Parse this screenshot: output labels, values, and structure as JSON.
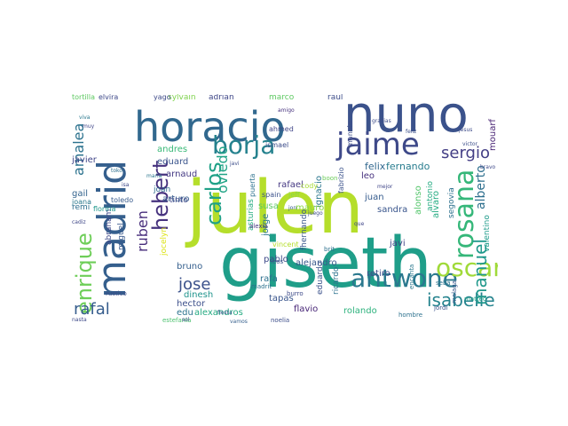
{
  "wordcloud": {
    "words": [
      {
        "text": "julen",
        "color": "#b5de2b"
      },
      {
        "text": "giseth",
        "color": "#1f9e89"
      },
      {
        "text": "nuno",
        "color": "#3b528b"
      },
      {
        "text": "horacio",
        "color": "#31688e"
      },
      {
        "text": "madrid",
        "color": "#355f8d"
      },
      {
        "text": "jaime",
        "color": "#3e4989"
      },
      {
        "text": "rosana",
        "color": "#35b779"
      },
      {
        "text": "borja",
        "color": "#26828e"
      },
      {
        "text": "antwone",
        "color": "#2a788e"
      },
      {
        "text": "oscar",
        "color": "#a0da39"
      },
      {
        "text": "enrique",
        "color": "#6ece58"
      },
      {
        "text": "hebert",
        "color": "#46327e"
      },
      {
        "text": "carlos",
        "color": "#1fa187"
      },
      {
        "text": "isabelle",
        "color": "#25838e"
      },
      {
        "text": "manuel",
        "color": "#1f988b"
      },
      {
        "text": "sergio",
        "color": "#433e85"
      },
      {
        "text": "rafal",
        "color": "#365d8d"
      },
      {
        "text": "jose",
        "color": "#3b518b"
      },
      {
        "text": "amalea",
        "color": "#2c728e"
      },
      {
        "text": "ruben",
        "color": "#472d7b"
      },
      {
        "text": "oviedo",
        "color": "#20a486"
      },
      {
        "text": "alberto",
        "color": "#2e6f8e"
      },
      {
        "text": "felix",
        "color": "#31678e"
      },
      {
        "text": "fernando",
        "color": "#287c8e"
      },
      {
        "text": "eduard",
        "color": "#3a548c"
      },
      {
        "text": "javier",
        "color": "#404588"
      },
      {
        "text": "arnaud",
        "color": "#443983"
      },
      {
        "text": "andres",
        "color": "#38b977"
      },
      {
        "text": "arturo",
        "color": "#365c8d"
      },
      {
        "text": "rafael",
        "color": "#453882"
      },
      {
        "text": "ignacio",
        "color": "#2a768e"
      },
      {
        "text": "alejandro",
        "color": "#38588c"
      },
      {
        "text": "alvaro",
        "color": "#25ac82"
      },
      {
        "text": "alonso",
        "color": "#52c569"
      },
      {
        "text": "sandra",
        "color": "#39558c"
      },
      {
        "text": "juan",
        "color": "#365c8d"
      },
      {
        "text": "susa",
        "color": "#5ec962"
      },
      {
        "text": "mauro",
        "color": "#8bd646"
      },
      {
        "text": "leo",
        "color": "#46317e"
      },
      {
        "text": "antonio",
        "color": "#25ab82"
      },
      {
        "text": "segovia",
        "color": "#2d718e"
      },
      {
        "text": "valentino",
        "color": "#1e9b8a"
      },
      {
        "text": "mouarf",
        "color": "#482374"
      },
      {
        "text": "jocelyn",
        "color": "#dde318"
      },
      {
        "text": "abraham",
        "color": "#3f4889"
      },
      {
        "text": "miguel",
        "color": "#38588c"
      },
      {
        "text": "bruno",
        "color": "#355f8d"
      },
      {
        "text": "pablo",
        "color": "#3e4a89"
      },
      {
        "text": "hector",
        "color": "#3c4f8a"
      },
      {
        "text": "rafa",
        "color": "#2d708e"
      },
      {
        "text": "dinesh",
        "color": "#1f948c"
      },
      {
        "text": "edu",
        "color": "#2c738e"
      },
      {
        "text": "alexandros",
        "color": "#25ab82"
      },
      {
        "text": "tapas",
        "color": "#39558c"
      },
      {
        "text": "flavio",
        "color": "#482677"
      },
      {
        "text": "rolando",
        "color": "#2db27d"
      },
      {
        "text": "ricardo",
        "color": "#2c728e"
      },
      {
        "text": "eduardo",
        "color": "#3b528b"
      },
      {
        "text": "retiro",
        "color": "#3e4c8a"
      },
      {
        "text": "javi",
        "color": "#404688"
      },
      {
        "text": "jorge",
        "color": "#2a778e"
      },
      {
        "text": "fhernando",
        "color": "#39568c"
      },
      {
        "text": "asturias",
        "color": "#26ad81"
      },
      {
        "text": "gail",
        "color": "#33638d"
      },
      {
        "text": "remi",
        "color": "#2e6e8e"
      },
      {
        "text": "joan",
        "color": "#2f6b8e"
      },
      {
        "text": "tinto",
        "color": "#3e4989"
      },
      {
        "text": "adrian",
        "color": "#3f4788"
      },
      {
        "text": "marco",
        "color": "#5ec962"
      },
      {
        "text": "raul",
        "color": "#3d4d8a"
      },
      {
        "text": "sylvain",
        "color": "#7fd34e"
      },
      {
        "text": "yago",
        "color": "#3e4a89"
      },
      {
        "text": "elvira",
        "color": "#3e4989"
      },
      {
        "text": "tortilla",
        "color": "#5ec962"
      },
      {
        "text": "toledo",
        "color": "#375a8c"
      },
      {
        "text": "florina",
        "color": "#1f978b"
      },
      {
        "text": "joana",
        "color": "#2a788e"
      },
      {
        "text": "ahmed",
        "color": "#404588"
      },
      {
        "text": "ismael",
        "color": "#3d4d8a"
      },
      {
        "text": "jeff",
        "color": "#8bd646"
      },
      {
        "text": "cody",
        "color": "#a8db34"
      },
      {
        "text": "spain",
        "color": "#3b518b"
      },
      {
        "text": "puerta",
        "color": "#2c718e"
      },
      {
        "text": "fabrizio",
        "color": "#3b528b"
      },
      {
        "text": "manolo",
        "color": "#3e4c8a"
      },
      {
        "text": "boon",
        "color": "#6ccd5a"
      },
      {
        "text": "brit",
        "color": "#2d708e"
      },
      {
        "text": "hombre",
        "color": "#2c718e"
      },
      {
        "text": "encanta",
        "color": "#2a788e"
      },
      {
        "text": "malaga",
        "color": "#39568c"
      },
      {
        "text": "matteo",
        "color": "#1fa088"
      },
      {
        "text": "estefania",
        "color": "#4ac16d"
      },
      {
        "text": "rustico",
        "color": "#3e4c8a"
      },
      {
        "text": "seba",
        "color": "#2c738e"
      },
      {
        "text": "jordi",
        "color": "#3b528b"
      },
      {
        "text": "burro",
        "color": "#3e4a89"
      },
      {
        "text": "madrit",
        "color": "#2c718e"
      },
      {
        "text": "leos",
        "color": "#39568c"
      },
      {
        "text": "vincent",
        "color": "#b5de2b"
      },
      {
        "text": "noelia",
        "color": "#3d4e8a"
      },
      {
        "text": "alexia",
        "color": "#46337f"
      },
      {
        "text": "victor",
        "color": "#3c4f8a"
      },
      {
        "text": "jesus",
        "color": "#3e4c8a"
      },
      {
        "text": "mejor",
        "color": "#404688"
      },
      {
        "text": "maria",
        "color": "#2a768e"
      },
      {
        "text": "cadiz",
        "color": "#3f4788"
      },
      {
        "text": "sol",
        "color": "#3e4c8a"
      },
      {
        "text": "nasta",
        "color": "#3e4989"
      },
      {
        "text": "toko",
        "color": "#2e6f8e"
      },
      {
        "text": "isa",
        "color": "#3e4989"
      },
      {
        "text": "jon",
        "color": "#375a8c"
      },
      {
        "text": "muy",
        "color": "#404688"
      },
      {
        "text": "javi",
        "color": "#3d4e8a"
      },
      {
        "text": "que",
        "color": "#404688"
      },
      {
        "text": "juego",
        "color": "#3d4d8a"
      },
      {
        "text": "gracias",
        "color": "#3e4c8a"
      },
      {
        "text": "feliz",
        "color": "#3c4f8a"
      },
      {
        "text": "amigo",
        "color": "#46327e"
      },
      {
        "text": "fiesta",
        "color": "#39568c"
      },
      {
        "text": "vamos",
        "color": "#355f8d"
      },
      {
        "text": "bravo",
        "color": "#3e4989"
      },
      {
        "text": "viva",
        "color": "#2a788e"
      }
    ]
  }
}
